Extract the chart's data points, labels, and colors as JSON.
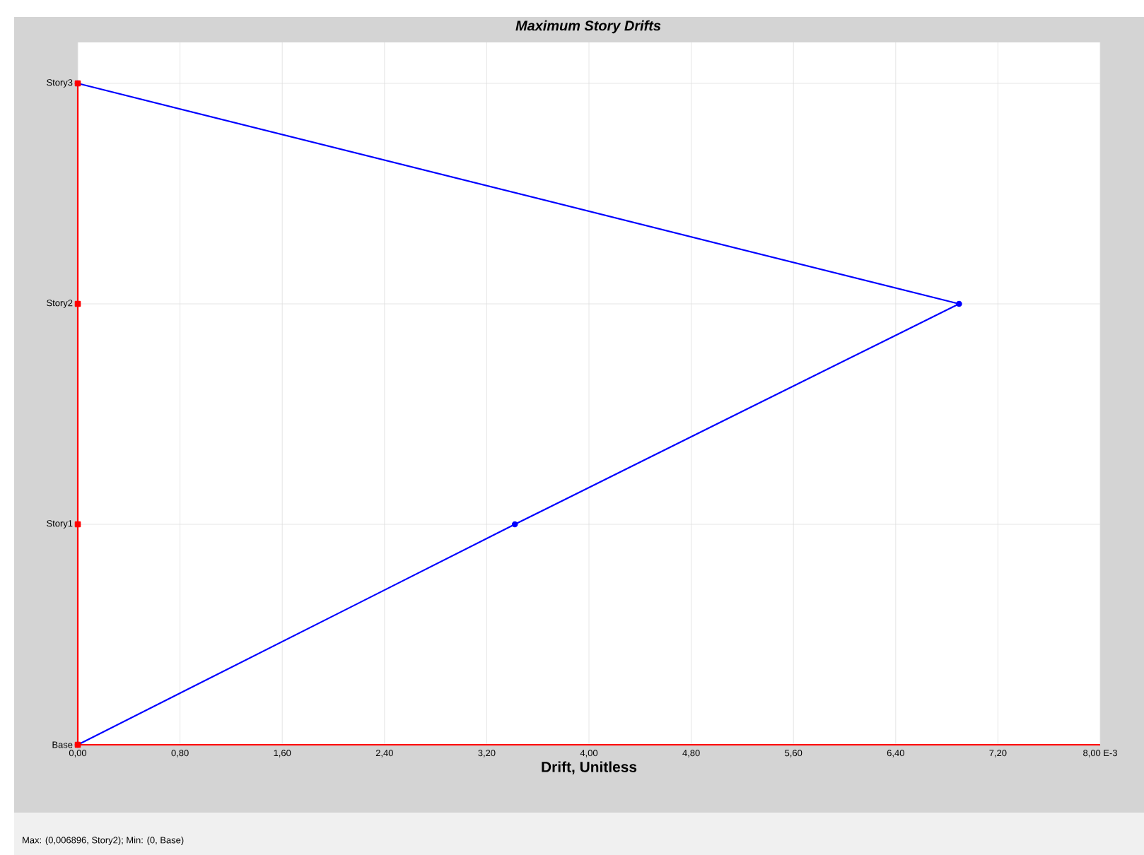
{
  "chart_data": {
    "type": "line",
    "orientation": "horizontal",
    "title": "Maximum Story Drifts",
    "xlabel": "Drift, Unitless",
    "categories": [
      "Story3",
      "Story2",
      "Story1",
      "Base"
    ],
    "xlim": [
      0,
      8
    ],
    "xticks": [
      {
        "value": 0,
        "label": "0,00"
      },
      {
        "value": 0.8,
        "label": "0,80"
      },
      {
        "value": 1.6,
        "label": "1,60"
      },
      {
        "value": 2.4,
        "label": "2,40"
      },
      {
        "value": 3.2,
        "label": "3,20"
      },
      {
        "value": 4,
        "label": "4,00"
      },
      {
        "value": 4.8,
        "label": "4,80"
      },
      {
        "value": 5.6,
        "label": "5,60"
      },
      {
        "value": 6.4,
        "label": "6,40"
      },
      {
        "value": 7.2,
        "label": "7,20"
      },
      {
        "value": 8,
        "label": "8,00 E-3"
      }
    ],
    "grid": true,
    "series": [
      {
        "color": "#0000ff",
        "marker": "circle",
        "values": [
          0,
          6.896,
          3.42,
          0
        ]
      },
      {
        "color": "#ff0000",
        "marker": "square",
        "values": [
          0,
          0,
          0,
          0
        ]
      }
    ],
    "annotations": [
      "Max: (0,006896, Story2);   Min: (0, Base)"
    ]
  }
}
